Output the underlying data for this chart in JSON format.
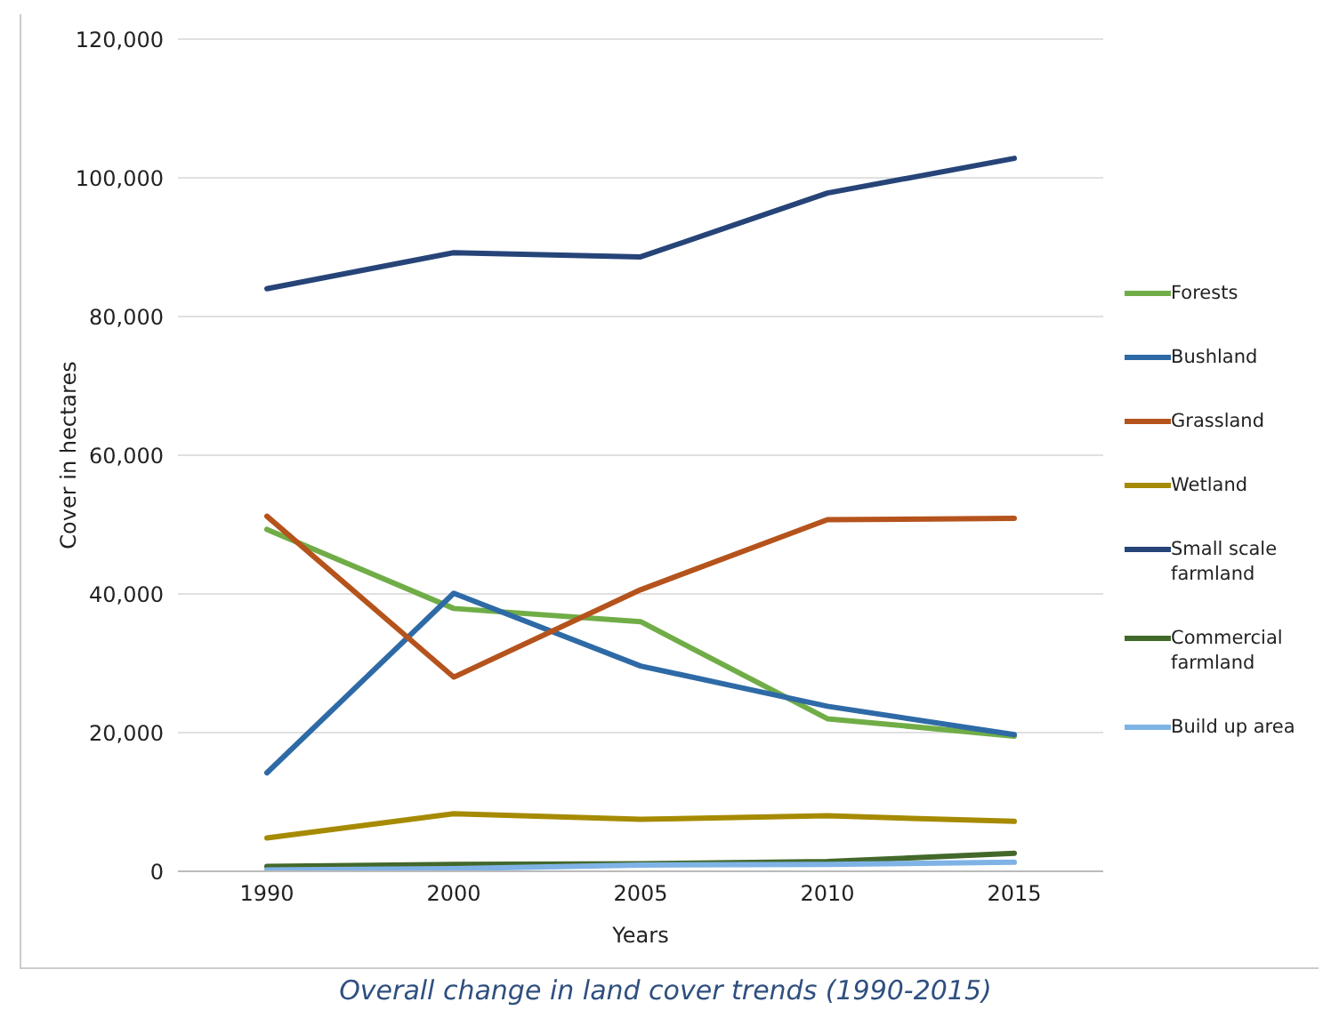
{
  "chart_data": {
    "type": "line",
    "title": "Overall change in land cover trends (1990-2015)",
    "xlabel": "Years",
    "ylabel": "Cover in hectares",
    "categories": [
      "1990",
      "2000",
      "2005",
      "2010",
      "2015"
    ],
    "series": [
      {
        "name": "Forests",
        "color": "#70ad47",
        "values": [
          49300,
          37900,
          36000,
          22000,
          19500
        ]
      },
      {
        "name": "Bushland",
        "color": "#2e6aa6",
        "values": [
          14200,
          40100,
          29600,
          23800,
          19700
        ]
      },
      {
        "name": "Grassland",
        "color": "#b5531c",
        "values": [
          51200,
          28000,
          40600,
          50700,
          50900
        ]
      },
      {
        "name": "Wetland",
        "color": "#a68a00",
        "values": [
          4800,
          8300,
          7500,
          8000,
          7200
        ]
      },
      {
        "name": "Small scale farmland",
        "color": "#264478",
        "values": [
          84000,
          89200,
          88600,
          97800,
          102800
        ]
      },
      {
        "name": "Commercial farmland",
        "color": "#43682b",
        "values": [
          700,
          1000,
          1100,
          1400,
          2600
        ]
      },
      {
        "name": "Build up area",
        "color": "#7fb3e6",
        "values": [
          200,
          400,
          900,
          1000,
          1300
        ]
      }
    ],
    "ylim": [
      0,
      120000
    ],
    "yticks": [
      0,
      {
        "value": 20000,
        "label": "20,000"
      },
      {
        "value": 40000,
        "label": "40,000"
      },
      {
        "value": 60000,
        "label": "60,000"
      },
      {
        "value": 80000,
        "label": "80,000"
      },
      {
        "value": 100000,
        "label": "100,000"
      },
      {
        "value": 120000,
        "label": "120,000"
      }
    ],
    "grid": "y",
    "legend": "right",
    "marker": "none",
    "line_style": "solid"
  }
}
